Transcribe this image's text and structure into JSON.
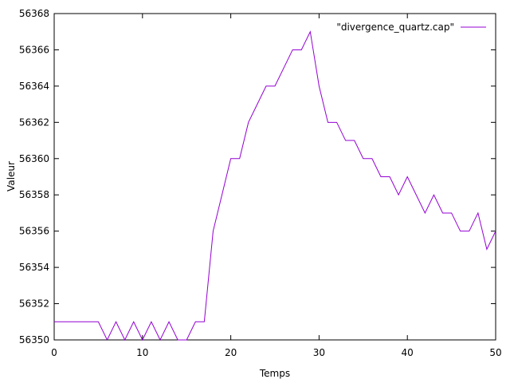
{
  "chart_data": {
    "type": "line",
    "title": "",
    "xlabel": "Temps",
    "ylabel": "Valeur",
    "xlim": [
      0,
      50
    ],
    "ylim": [
      56350,
      56368
    ],
    "xticks": [
      0,
      10,
      20,
      30,
      40,
      50
    ],
    "yticks": [
      56350,
      56352,
      56354,
      56356,
      56358,
      56360,
      56362,
      56364,
      56366,
      56368
    ],
    "grid": false,
    "legend_position": "top-right",
    "series": [
      {
        "name": "\"divergence_quartz.cap\"",
        "color": "#9400d3",
        "x": [
          0,
          1,
          2,
          3,
          4,
          5,
          6,
          7,
          8,
          9,
          10,
          11,
          12,
          13,
          14,
          15,
          16,
          17,
          18,
          19,
          20,
          21,
          22,
          23,
          24,
          25,
          26,
          27,
          28,
          29,
          30,
          31,
          32,
          33,
          34,
          35,
          36,
          37,
          38,
          39,
          40,
          41,
          42,
          43,
          44,
          45,
          46,
          47,
          48,
          49,
          50
        ],
        "y": [
          56351,
          56351,
          56351,
          56351,
          56351,
          56351,
          56350,
          56351,
          56350,
          56351,
          56350,
          56351,
          56350,
          56351,
          56350,
          56350,
          56351,
          56351,
          56356,
          56358,
          56360,
          56360,
          56362,
          56363,
          56364,
          56364,
          56365,
          56366,
          56366,
          56367,
          56364,
          56362,
          56362,
          56361,
          56361,
          56360,
          56360,
          56359,
          56359,
          56358,
          56359,
          56358,
          56357,
          56358,
          56357,
          56357,
          56356,
          56356,
          56357,
          56355,
          56356
        ]
      }
    ]
  }
}
